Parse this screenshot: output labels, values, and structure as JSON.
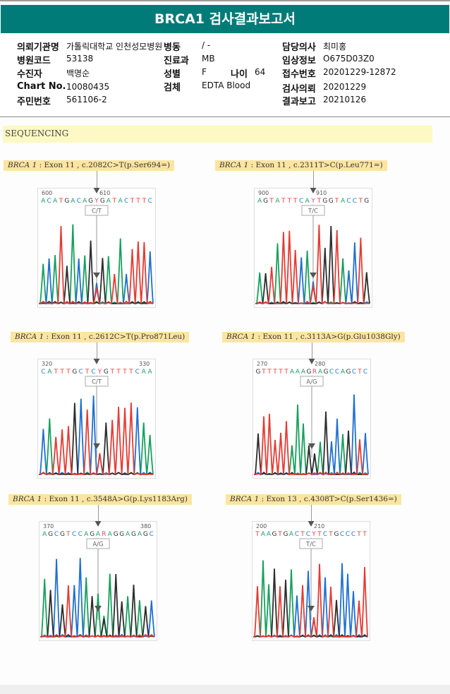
{
  "report": {
    "title": "BRCA1 검사결과보고서",
    "accent_color": "#007b78"
  },
  "patient_info": {
    "institution_label": "의뢰기관명",
    "institution_value": "가톨릭대학교 인천성모병원",
    "ward_label": "병동",
    "ward_value": "/ -",
    "doctor_label": "담당의사",
    "doctor_value": "최미홍",
    "hospital_code_label": "병원코드",
    "hospital_code_value": "53138",
    "department_label": "진료과",
    "department_value": "MB",
    "clinical_info_label": "임상정보",
    "clinical_info_value": "O675D03Z0",
    "patient_label": "수진자",
    "patient_value": "백명순",
    "sex_label": "성별",
    "sex_value": "F",
    "age_label": "나이",
    "age_value": "64",
    "receipt_label": "접수번호",
    "receipt_value": "20201229-12872",
    "chart_label": "Chart No.",
    "chart_value": "10080435",
    "specimen_label": "검체",
    "specimen_value": "EDTA Blood",
    "request_label": "검사의뢰",
    "request_value": "20201229",
    "id_label": "주민번호",
    "id_value": "561106-2",
    "result_label": "결과보고",
    "result_value": "20210126"
  },
  "section": {
    "title": "SEQUENCING"
  },
  "variants": [
    {
      "gene": "BRCA 1",
      "detail": " : Exon 11 , c.2082C>T(p.Ser694=)",
      "pos_start": "600",
      "pos_mid": "610",
      "sequence": "ACATGACAGYGATACTTTC",
      "call": "C/T"
    },
    {
      "gene": "BRCA 1",
      "detail": " : Exon 11 , c.2311T>C(p.Leu771=)",
      "pos_start": "900",
      "pos_mid": "910",
      "sequence": "AGTATTTCAYTGGTACCTG",
      "call": "T/C"
    },
    {
      "gene": "BRCA 1",
      "detail": " : Exon 11 , c.2612C>T(p.Pro871Leu)",
      "pos_start": "320",
      "pos_mid": "330",
      "sequence": "CATTTGCTCYGTTTTCAA",
      "call": "C/T"
    },
    {
      "gene": "BRCA 1",
      "detail": " : Exon 11 , c.3113A>G(p.Glu1038Gly)",
      "pos_start": "270",
      "pos_mid": "280",
      "sequence": "GTTTTTAAAGRAGCCAGCTC",
      "call": "A/G"
    },
    {
      "gene": "BRCA 1",
      "detail": " : Exon 11 , c.3548A>G(p.Lys1183Arg)",
      "pos_start": "370",
      "pos_mid": "380",
      "sequence": "AGCGTCCAGARAGGAGAGC",
      "call": "A/G"
    },
    {
      "gene": "BRCA 1",
      "detail": " : Exon 13 , c.4308T>C(p.Ser1436=)",
      "pos_start": "200",
      "pos_mid": "210",
      "sequence": "TAAGTGACTCYTCTGCCCTT",
      "call": "T/C"
    }
  ],
  "base_colors": {
    "A": "#1aa06a",
    "C": "#1f7bd6",
    "G": "#333333",
    "T": "#e8403a",
    "mix": "#e0457a"
  }
}
